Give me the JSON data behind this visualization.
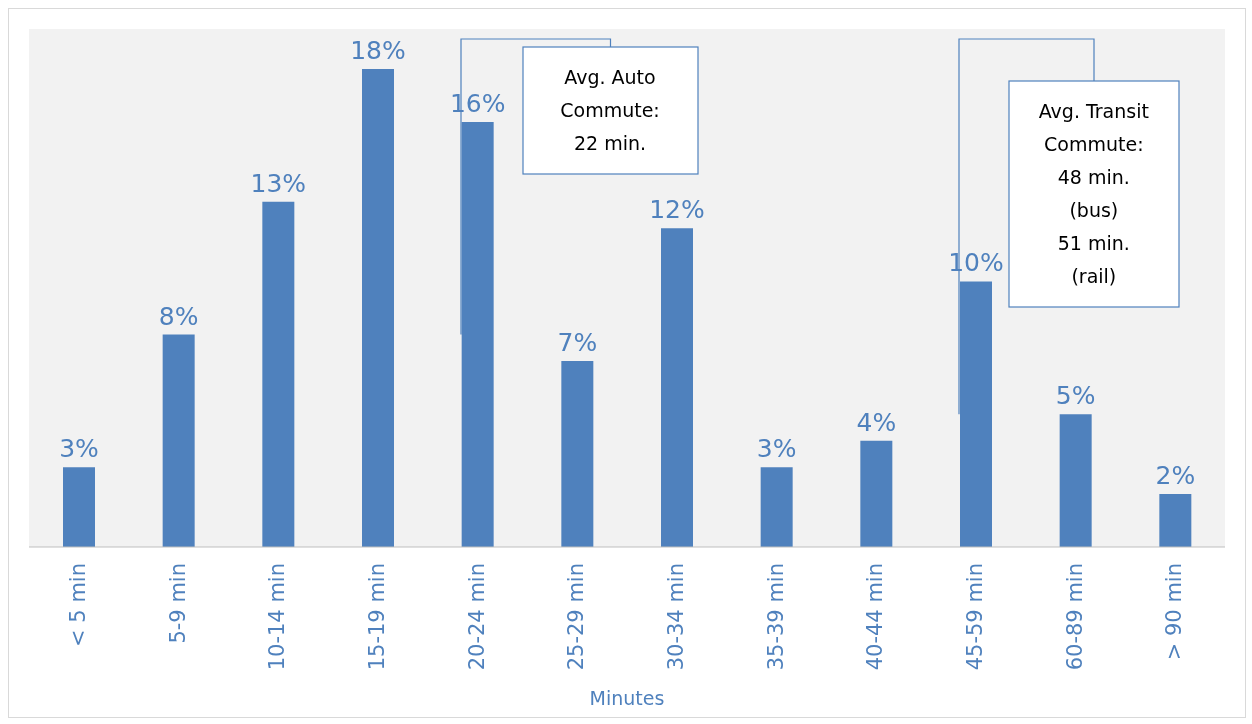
{
  "chart_data": {
    "type": "bar",
    "xlabel": "Minutes",
    "categories": [
      "< 5 min",
      "5-9 min",
      "10-14 min",
      "15-19 min",
      "20-24 min",
      "25-29 min",
      "30-34 min",
      "35-39 min",
      "40-44 min",
      "45-59 min",
      "60-89 min",
      "> 90 min"
    ],
    "values": [
      3,
      8,
      13,
      18,
      16,
      7,
      12,
      3,
      4,
      10,
      5,
      2
    ],
    "value_labels": [
      "3%",
      "8%",
      "13%",
      "18%",
      "16%",
      "7%",
      "12%",
      "3%",
      "4%",
      "10%",
      "5%",
      "2%"
    ],
    "color": "#4f81bd",
    "annotations": [
      "Avg. Auto\nCommute:\n22 min.",
      "Avg. Transit\nCommute:\n48 min.\n(bus)\n51 min.\n(rail)"
    ]
  }
}
